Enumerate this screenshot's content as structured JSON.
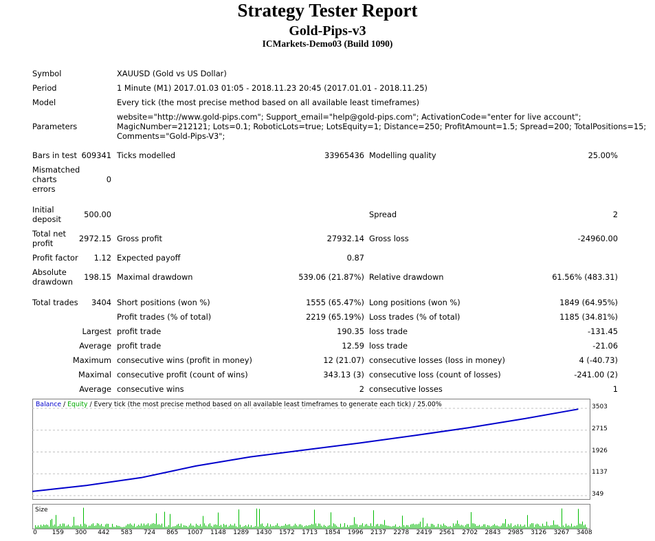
{
  "header": {
    "title": "Strategy Tester Report",
    "ea_name": "Gold-Pips-v3",
    "server": "ICMarkets-Demo03 (Build 1090)"
  },
  "info": {
    "symbol_label": "Symbol",
    "symbol": "XAUUSD (Gold vs US Dollar)",
    "period_label": "Period",
    "period": "1 Minute (M1) 2017.01.03 01:05 - 2018.11.23 20:45 (2017.01.01 - 2018.11.25)",
    "model_label": "Model",
    "model": "Every tick (the most precise method based on all available least timeframes)",
    "parameters_label": "Parameters",
    "parameters_line1": "website=\"http://www.gold-pips.com\"; Support_email=\"help@gold-pips.com\"; ActivationCode=\"enter for live account\";",
    "parameters_line2": "MagicNumber=212121; Lots=0.1; RoboticLots=true; LotsEquity=1; Distance=250; ProfitAmount=1.5; Spread=200; TotalPositions=15;",
    "parameters_line3": "Comments=\"Gold-Pips-V3\";"
  },
  "stats": {
    "bars_label": "Bars in test",
    "bars": "609341",
    "ticks_label": "Ticks modelled",
    "ticks": "33965436",
    "quality_label": "Modelling quality",
    "quality": "25.00%",
    "mismatch_label_1": "Mismatched",
    "mismatch_label_2": "charts",
    "mismatch_label_3": "errors",
    "mismatch": "0",
    "deposit_label_1": "Initial",
    "deposit_label_2": "deposit",
    "deposit": "500.00",
    "spread_label": "Spread",
    "spread": "2",
    "netprofit_label_1": "Total net",
    "netprofit_label_2": "profit",
    "netprofit": "2972.15",
    "grossprofit_label": "Gross profit",
    "grossprofit": "27932.14",
    "grossloss_label": "Gross loss",
    "grossloss": "-24960.00",
    "pf_label": "Profit factor",
    "pf": "1.12",
    "ep_label": "Expected payoff",
    "ep": "0.87",
    "absdd_label_1": "Absolute",
    "absdd_label_2": "drawdown",
    "absdd": "198.15",
    "maxdd_label": "Maximal drawdown",
    "maxdd": "539.06 (21.87%)",
    "reldd_label": "Relative drawdown",
    "reldd": "61.56% (483.31)",
    "trades_label": "Total trades",
    "trades": "3404",
    "short_label": "Short positions (won %)",
    "short": "1555 (65.47%)",
    "long_label": "Long positions (won %)",
    "long": "1849 (64.95%)",
    "pt_label": "Profit trades (% of total)",
    "pt": "2219 (65.19%)",
    "lt_label": "Loss trades (% of total)",
    "lt": "1185 (34.81%)",
    "largest_label": "Largest",
    "lpt_label": "profit trade",
    "lpt": "190.35",
    "llt_label": "loss trade",
    "llt": "-131.45",
    "average_label": "Average",
    "apt_label": "profit trade",
    "apt": "12.59",
    "alt_label": "loss trade",
    "alt": "-21.06",
    "maximum_label": "Maximum",
    "mcw_label": "consecutive wins (profit in money)",
    "mcw": "12 (21.07)",
    "mcl_label": "consecutive losses (loss in money)",
    "mcl": "4 (-40.73)",
    "maximal_label": "Maximal",
    "mcp_label": "consecutive profit (count of wins)",
    "mcp": "343.13 (3)",
    "mcll_label": "consecutive loss (count of losses)",
    "mcll": "-241.00 (2)",
    "average2_label": "Average",
    "acw_label": "consecutive wins",
    "acw": "2",
    "acl_label": "consecutive losses",
    "acl": "1"
  },
  "chart_legend": {
    "balance": "Balance",
    "sep1": " / ",
    "equity": "Equity",
    "rest": " / Every tick (the most precise method based on all available least timeframes to generate each tick) / 25.00%",
    "size_label": "Size"
  },
  "colors": {
    "balance": "#0000cc",
    "equity": "#00aa00",
    "size": "#00bb00",
    "grid": "#c0c0c0"
  },
  "chart_data": {
    "type": "line",
    "series": [
      {
        "name": "Balance",
        "x": [
          0,
          340,
          680,
          1020,
          1360,
          1700,
          2040,
          2380,
          2720,
          3060,
          3404
        ],
        "y": [
          500,
          720,
          1000,
          1420,
          1750,
          2000,
          2250,
          2520,
          2800,
          3120,
          3472
        ]
      },
      {
        "name": "Equity",
        "x": [
          0,
          340,
          680,
          1020,
          1360,
          1700,
          2040,
          2380,
          2720,
          3060,
          3404
        ],
        "y": [
          500,
          720,
          1000,
          1420,
          1750,
          2000,
          2250,
          2520,
          2800,
          3120,
          3472
        ]
      }
    ],
    "ylim": [
      349,
      3503
    ],
    "yticks": [
      "3503",
      "2715",
      "1926",
      "1137",
      "349"
    ],
    "xticks": [
      "0",
      "159",
      "300",
      "442",
      "583",
      "724",
      "865",
      "1007",
      "1148",
      "1289",
      "1430",
      "1572",
      "1713",
      "1854",
      "1996",
      "2137",
      "2278",
      "2419",
      "2561",
      "2702",
      "2843",
      "2985",
      "3126",
      "3267",
      "3408"
    ],
    "xlim": [
      0,
      3480
    ],
    "grid": true
  }
}
